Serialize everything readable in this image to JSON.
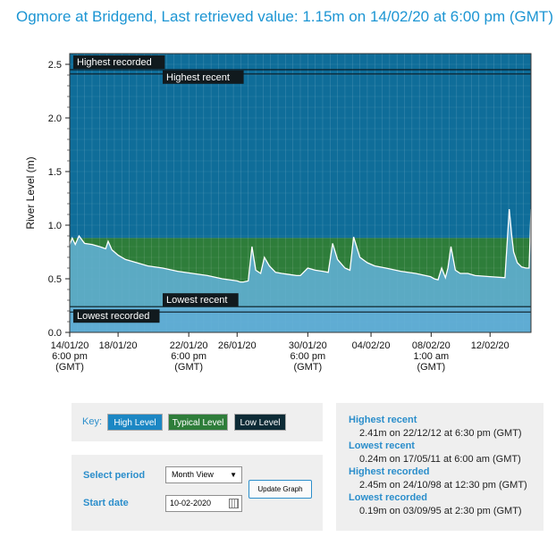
{
  "page": {
    "title": "Ogmore at Bridgend, Last retrieved value: 1.15m on 14/02/20 at 6:00 pm (GMT)"
  },
  "chart_data": {
    "type": "area",
    "ylabel": "River Level (m)",
    "ylim": [
      0,
      2.6
    ],
    "y_ticks": [
      "0.0",
      "0.5",
      "1.0",
      "1.5",
      "2.0",
      "2.5"
    ],
    "xlim": [
      "14/01/20 18:00",
      "14/02/20 18:00"
    ],
    "x_ticks": [
      {
        "t": "14/01/20 18:00",
        "lines": [
          "14/01/20",
          "6:00 pm",
          "(GMT)"
        ]
      },
      {
        "t": "18/01/20 00:00",
        "lines": [
          "18/01/20"
        ]
      },
      {
        "t": "22/01/20 18:00",
        "lines": [
          "22/01/20",
          "6:00 pm",
          "(GMT)"
        ]
      },
      {
        "t": "26/01/20 00:00",
        "lines": [
          "26/01/20"
        ]
      },
      {
        "t": "30/01/20 18:00",
        "lines": [
          "30/01/20",
          "6:00 pm",
          "(GMT)"
        ]
      },
      {
        "t": "04/02/20 00:00",
        "lines": [
          "04/02/20"
        ]
      },
      {
        "t": "08/02/20 01:00",
        "lines": [
          "08/02/20",
          "1:00 am",
          "(GMT)"
        ]
      },
      {
        "t": "12/02/20 00:00",
        "lines": [
          "12/02/20"
        ]
      }
    ],
    "bands": [
      {
        "name": "High Level",
        "from": 0.88,
        "to": 2.6,
        "color": "#0f6d99"
      },
      {
        "name": "Typical Level",
        "from": 0.23,
        "to": 0.88,
        "color": "#2e7d3a"
      },
      {
        "name": "Low Level",
        "from": 0.0,
        "to": 0.23,
        "color": "#4a8fbe"
      }
    ],
    "reference_lines": [
      {
        "label": "Highest recorded",
        "value": 2.45
      },
      {
        "label": "Highest recent",
        "value": 2.41
      },
      {
        "label": "Lowest recorded",
        "value": 0.19
      },
      {
        "label": "Lowest recent",
        "value": 0.24
      }
    ],
    "series": [
      {
        "fill": "#62b0d6",
        "x": [
          "14/01/20 18:00",
          "14/01/20 22:00",
          "15/01/20 03:00",
          "15/01/20 09:00",
          "15/01/20 18:00",
          "16/01/20 06:00",
          "16/01/20 18:00",
          "17/01/20 04:00",
          "17/01/20 08:00",
          "17/01/20 14:00",
          "18/01/20 00:00",
          "18/01/20 12:00",
          "19/01/20 00:00",
          "20/01/20 00:00",
          "21/01/20 00:00",
          "22/01/20 00:00",
          "23/01/20 00:00",
          "24/01/20 00:00",
          "25/01/20 00:00",
          "26/01/20 00:00",
          "26/01/20 05:00",
          "26/01/20 10:00",
          "26/01/20 18:00",
          "27/01/20 00:00",
          "27/01/20 06:00",
          "27/01/20 14:00",
          "27/01/20 20:00",
          "28/01/20 04:00",
          "28/01/20 14:00",
          "29/01/20 00:00",
          "29/01/20 12:00",
          "30/01/20 00:00",
          "30/01/20 06:00",
          "30/01/20 18:00",
          "31/01/20 06:00",
          "31/01/20 18:00",
          "01/02/20 03:00",
          "01/02/20 10:00",
          "01/02/20 18:00",
          "02/02/20 06:00",
          "02/02/20 14:00",
          "02/02/20 20:00",
          "03/02/20 06:00",
          "03/02/20 18:00",
          "04/02/20 06:00",
          "05/02/20 00:00",
          "06/02/20 00:00",
          "07/02/20 00:00",
          "08/02/20 00:00",
          "08/02/20 06:00",
          "08/02/20 12:00",
          "08/02/20 18:00",
          "09/02/20 00:00",
          "09/02/20 04:00",
          "09/02/20 09:00",
          "09/02/20 16:00",
          "10/02/20 00:00",
          "10/02/20 12:00",
          "11/02/20 00:00",
          "12/02/20 00:00",
          "13/02/20 00:00",
          "13/02/20 07:00",
          "13/02/20 11:00",
          "13/02/20 14:00",
          "13/02/20 20:00",
          "14/02/20 03:00",
          "14/02/20 10:00",
          "14/02/20 15:00",
          "14/02/20 18:00"
        ],
        "values": [
          0.82,
          0.88,
          0.82,
          0.9,
          0.83,
          0.82,
          0.8,
          0.78,
          0.85,
          0.77,
          0.72,
          0.68,
          0.66,
          0.62,
          0.6,
          0.57,
          0.55,
          0.53,
          0.5,
          0.48,
          0.47,
          0.47,
          0.48,
          0.8,
          0.58,
          0.55,
          0.7,
          0.62,
          0.56,
          0.55,
          0.54,
          0.53,
          0.53,
          0.6,
          0.58,
          0.57,
          0.56,
          0.83,
          0.68,
          0.6,
          0.58,
          0.89,
          0.7,
          0.65,
          0.62,
          0.6,
          0.57,
          0.55,
          0.52,
          0.5,
          0.49,
          0.6,
          0.51,
          0.6,
          0.8,
          0.58,
          0.55,
          0.55,
          0.53,
          0.52,
          0.51,
          1.15,
          0.9,
          0.75,
          0.65,
          0.61,
          0.6,
          0.6,
          1.15
        ]
      }
    ]
  },
  "key": {
    "label": "Key:",
    "high": "High Level",
    "typical": "Typical Level",
    "low": "Low Level",
    "colors": {
      "high": "#1c87c4",
      "typical": "#2e7d3a",
      "low": "#0d2b36"
    }
  },
  "period": {
    "label": "Select period",
    "selected": "Month View",
    "start_label": "Start date",
    "start_value": "10-02-2020",
    "update_button": "Update Graph"
  },
  "stats": {
    "highest_recent_label": "Highest recent",
    "highest_recent_value": "2.41m on 22/12/12 at 6:30 pm (GMT)",
    "lowest_recent_label": "Lowest recent",
    "lowest_recent_value": "0.24m on 17/05/11 at 6:00 am (GMT)",
    "highest_recorded_label": "Highest recorded",
    "highest_recorded_value": "2.45m on 24/10/98 at 12:30 pm (GMT)",
    "lowest_recorded_label": "Lowest recorded",
    "lowest_recorded_value": "0.19m on 03/09/95 at 2:30 pm (GMT)"
  }
}
